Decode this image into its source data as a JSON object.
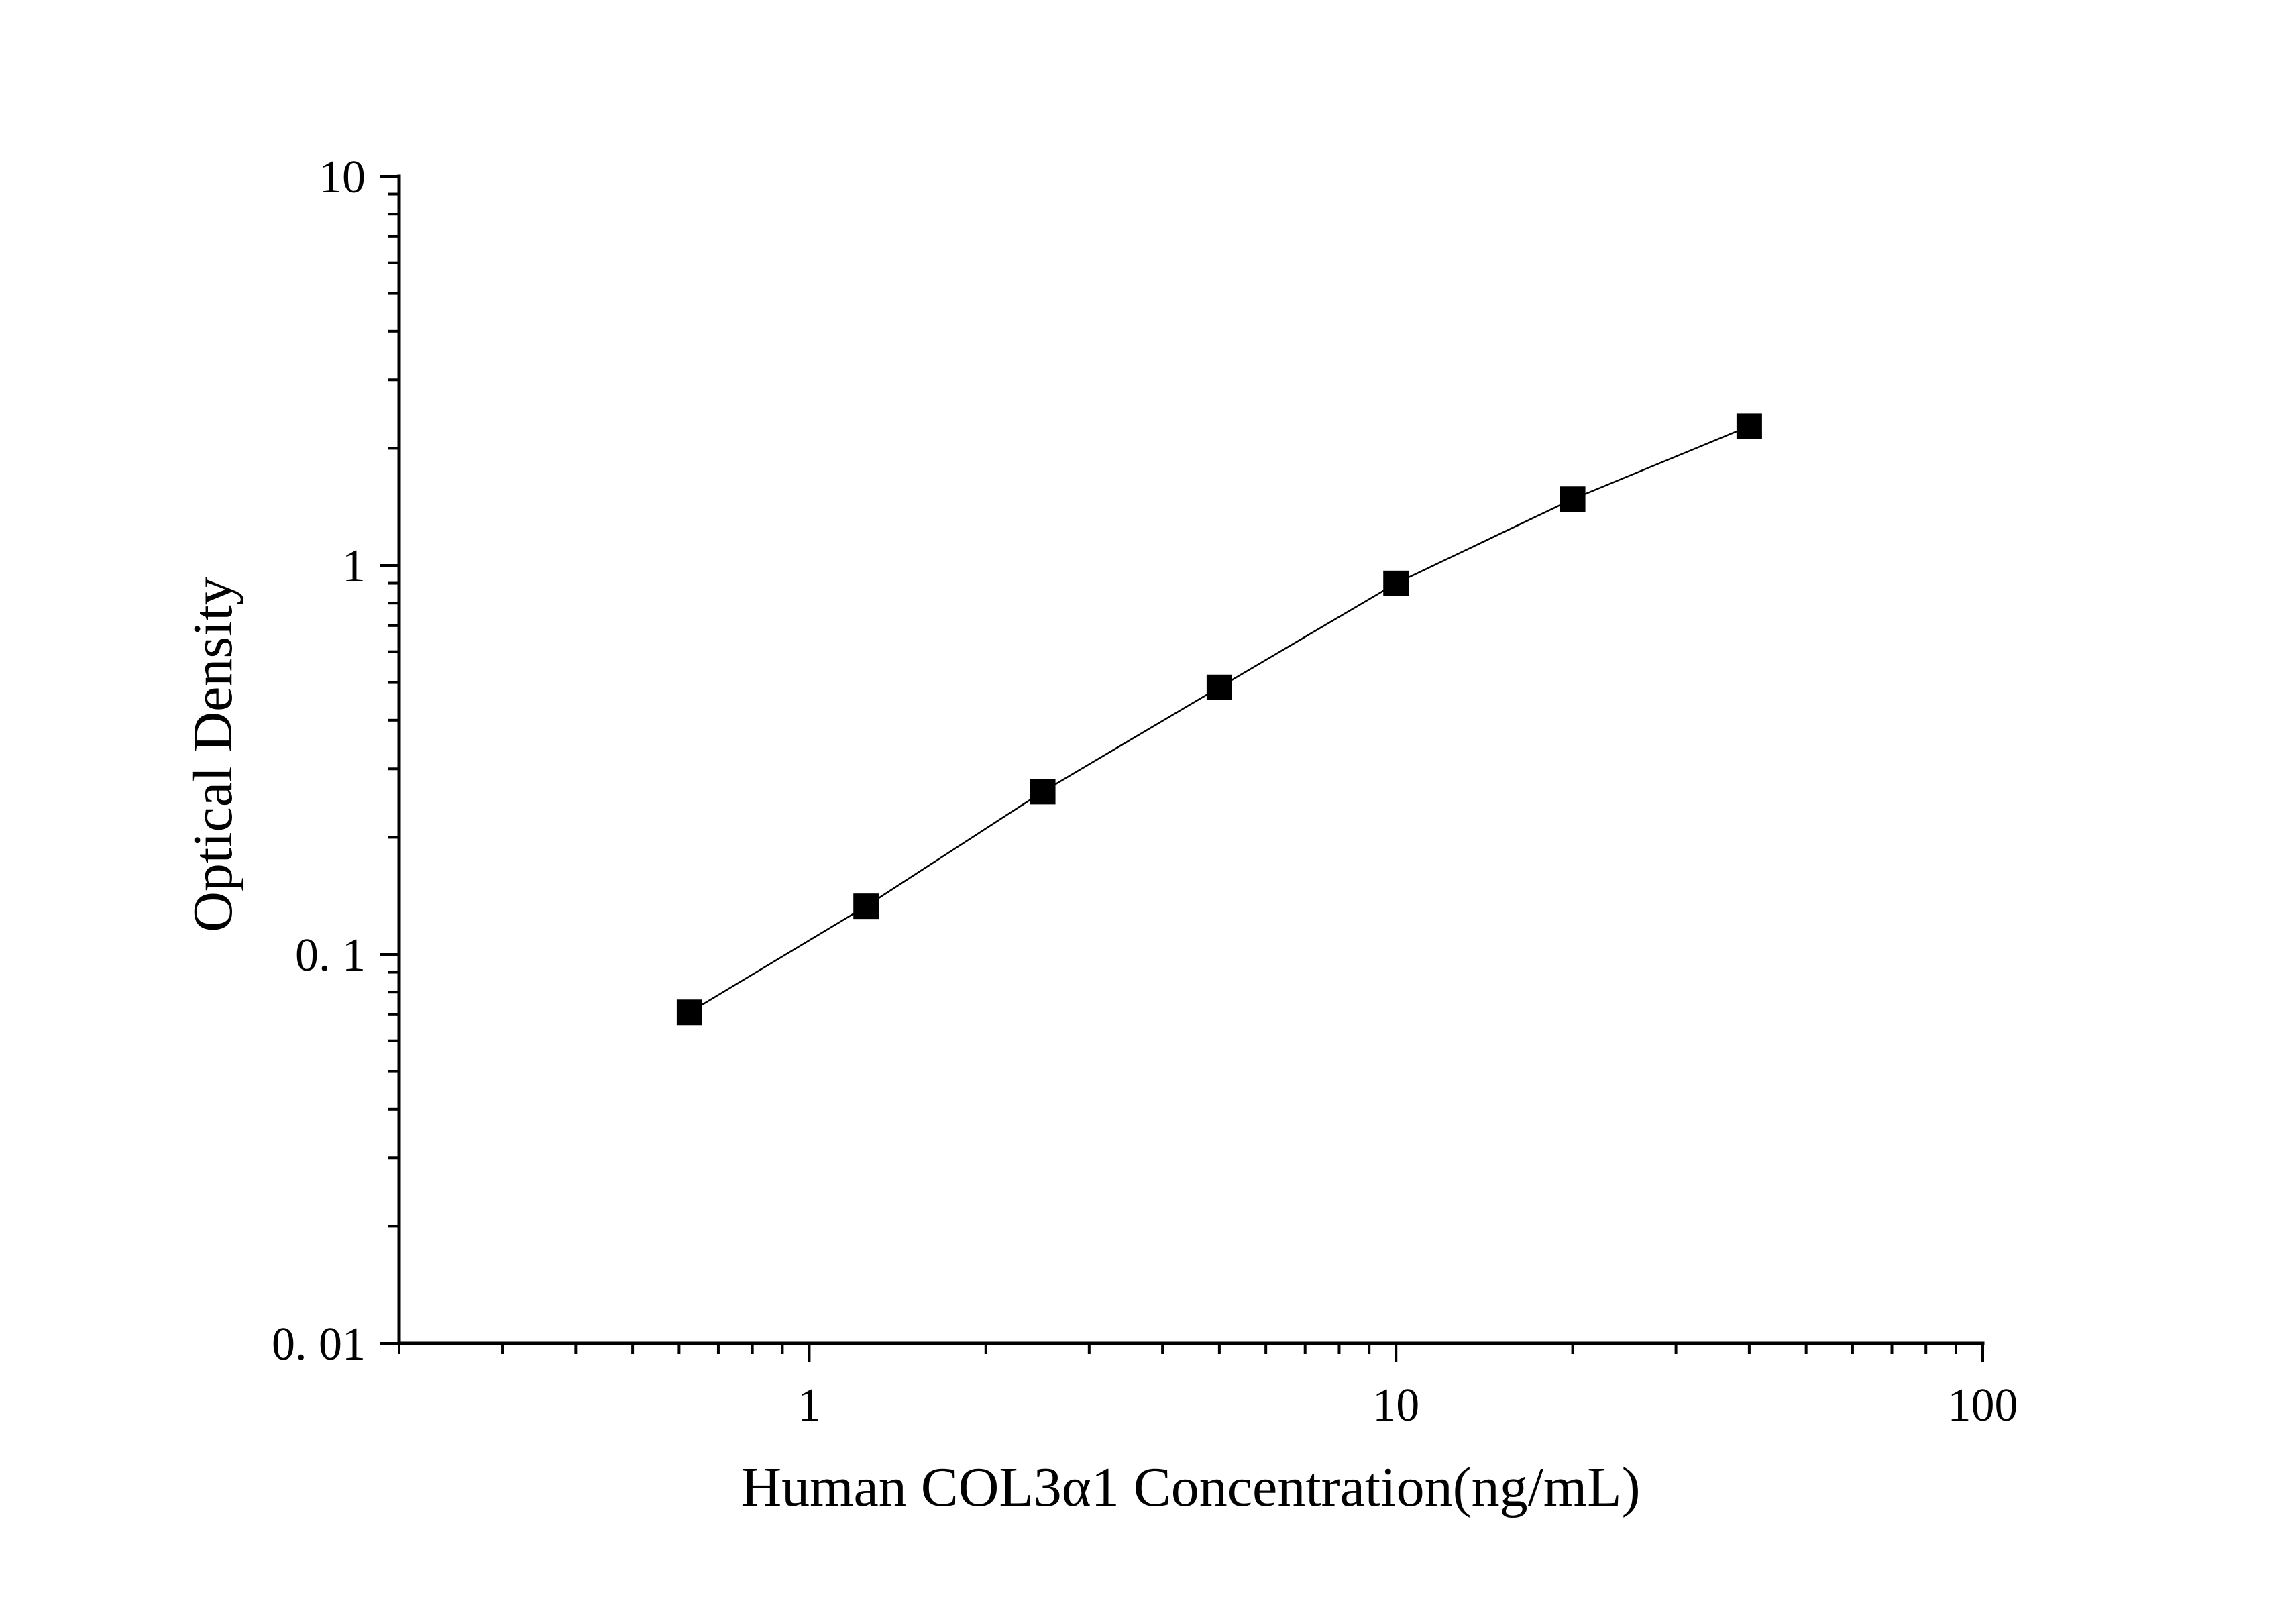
{
  "chart_data": {
    "type": "line",
    "title": "",
    "xlabel": "Human COL3α1 Concentration(ng/mL)",
    "ylabel": "Optical Density",
    "x_scale": "log",
    "y_scale": "log",
    "xlim": [
      0.2,
      100
    ],
    "ylim": [
      0.01,
      10
    ],
    "x_ticks": [
      {
        "value": 1,
        "label": "1"
      },
      {
        "value": 10,
        "label": "10"
      },
      {
        "value": 100,
        "label": "100"
      }
    ],
    "y_ticks": [
      {
        "value": 0.01,
        "label": "0. 01"
      },
      {
        "value": 0.1,
        "label": "0. 1"
      },
      {
        "value": 1,
        "label": "1"
      },
      {
        "value": 10,
        "label": "10"
      }
    ],
    "grid": false,
    "legend": false,
    "series": [
      {
        "marker": "square",
        "color": "#000000",
        "x": [
          0.625,
          1.25,
          2.5,
          5,
          10,
          20,
          40
        ],
        "y": [
          0.071,
          0.133,
          0.262,
          0.486,
          0.899,
          1.48,
          2.28
        ]
      }
    ]
  }
}
